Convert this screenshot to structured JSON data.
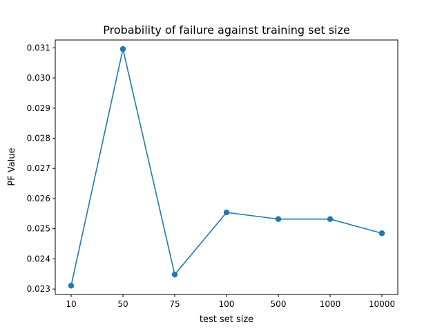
{
  "chart_data": {
    "type": "line",
    "title": "Probability of failure against training set size",
    "xlabel": "test set size",
    "ylabel": "PF Value",
    "categories": [
      "10",
      "50",
      "75",
      "100",
      "500",
      "1000",
      "10000"
    ],
    "series": [
      {
        "values": [
          0.02311,
          0.03096,
          0.02348,
          0.02554,
          0.02532,
          0.02532,
          0.02485
        ],
        "color": "#1f77b4",
        "marker": "circle"
      }
    ],
    "ylim": [
      0.02282,
      0.03126
    ],
    "yticks": [
      "0.023",
      "0.024",
      "0.025",
      "0.026",
      "0.027",
      "0.028",
      "0.029",
      "0.030",
      "0.031"
    ],
    "grid": false,
    "legend": "none"
  }
}
